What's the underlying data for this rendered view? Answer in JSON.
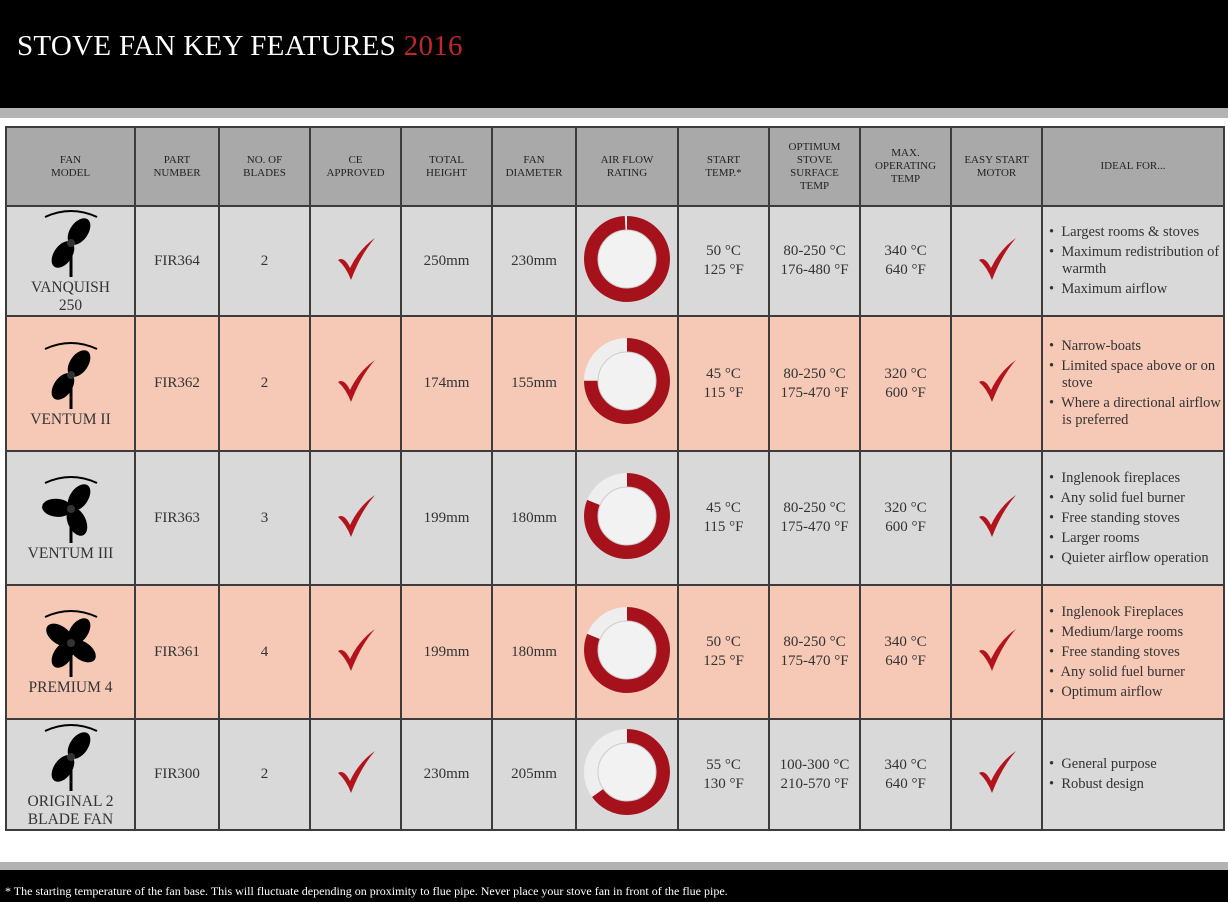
{
  "header": {
    "title": "STOVE FAN KEY FEATURES",
    "year": "2016"
  },
  "table": {
    "columns": [
      [
        "FAN",
        "MODEL"
      ],
      [
        "PART",
        "NUMBER"
      ],
      [
        "NO. OF",
        "BLADES"
      ],
      [
        "CE",
        "APPROVED"
      ],
      [
        "TOTAL",
        "HEIGHT"
      ],
      [
        "FAN",
        "DIAMETER"
      ],
      [
        "AIR FLOW",
        "RATING"
      ],
      [
        "START",
        "TEMP.*"
      ],
      [
        "OPTIMUM",
        "STOVE",
        "SURFACE",
        "TEMP"
      ],
      [
        "MAX.",
        "OPERATING",
        "TEMP"
      ],
      [
        "EASY START",
        "MOTOR"
      ],
      [
        "IDEAL FOR..."
      ]
    ],
    "rows": [
      {
        "model": [
          "VANQUISH",
          "250"
        ],
        "part": "FIR364",
        "blades": 2,
        "ce_approved": true,
        "height": "250mm",
        "diameter": "230mm",
        "air_flow_rating": 99,
        "start_temp": [
          "50 °C",
          "125 °F"
        ],
        "surface_temp": [
          "80-250 °C",
          "176-480 °F"
        ],
        "max_temp": [
          "340 °C",
          "640 °F"
        ],
        "easy_start": true,
        "ideal_for": [
          "Largest rooms & stoves",
          "Maximum redistribution of warmth",
          "Maximum airflow"
        ]
      },
      {
        "model": [
          "VENTUM II"
        ],
        "part": "FIR362",
        "blades": 2,
        "ce_approved": true,
        "height": "174mm",
        "diameter": "155mm",
        "air_flow_rating": 75,
        "start_temp": [
          "45 °C",
          "115 °F"
        ],
        "surface_temp": [
          "80-250 °C",
          "175-470 °F"
        ],
        "max_temp": [
          "320 °C",
          "600 °F"
        ],
        "easy_start": true,
        "ideal_for": [
          "Narrow-boats",
          "Limited space above or on stove",
          "Where a directional airflow is preferred"
        ]
      },
      {
        "model": [
          "VENTUM III"
        ],
        "part": "FIR363",
        "blades": 3,
        "ce_approved": true,
        "height": "199mm",
        "diameter": "180mm",
        "air_flow_rating": 81,
        "start_temp": [
          "45 °C",
          "115 °F"
        ],
        "surface_temp": [
          "80-250 °C",
          "175-470 °F"
        ],
        "max_temp": [
          "320 °C",
          "600 °F"
        ],
        "easy_start": true,
        "ideal_for": [
          "Inglenook fireplaces",
          "Any solid fuel burner",
          "Free standing stoves",
          "Larger rooms",
          "Quieter airflow operation"
        ]
      },
      {
        "model": [
          "PREMIUM 4"
        ],
        "part": "FIR361",
        "blades": 4,
        "ce_approved": true,
        "height": "199mm",
        "diameter": "180mm",
        "air_flow_rating": 81,
        "start_temp": [
          "50 °C",
          "125 °F"
        ],
        "surface_temp": [
          "80-250 °C",
          "175-470 °F"
        ],
        "max_temp": [
          "340 °C",
          "640 °F"
        ],
        "easy_start": true,
        "ideal_for": [
          "Inglenook Fireplaces",
          "Medium/large rooms",
          "Free standing stoves",
          "Any solid fuel burner",
          "Optimum airflow"
        ]
      },
      {
        "model": [
          "ORIGINAL 2",
          "BLADE FAN"
        ],
        "part": "FIR300",
        "blades": 2,
        "ce_approved": true,
        "height": "230mm",
        "diameter": "205mm",
        "air_flow_rating": 65,
        "start_temp": [
          "55 °C",
          "130 °F"
        ],
        "surface_temp": [
          "100-300 °C",
          "210-570 °F"
        ],
        "max_temp": [
          "340 °C",
          "640 °F"
        ],
        "easy_start": true,
        "ideal_for": [
          "General purpose",
          "Robust design"
        ]
      }
    ]
  },
  "footnote": "* The starting temperature of the fan base. This will fluctuate depending on proximity to flue pipe. Never place your stove fan in front of the flue pipe."
}
